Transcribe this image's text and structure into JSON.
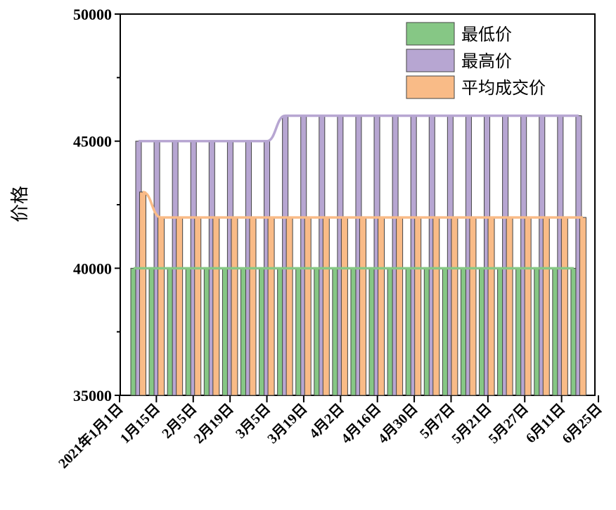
{
  "chart_data": {
    "type": "bar",
    "title": "",
    "xlabel": "",
    "ylabel": "价格",
    "ylim": [
      35000,
      50000
    ],
    "yticks": [
      35000,
      40000,
      45000,
      50000
    ],
    "x_tick_labels": [
      "2021年1月1日",
      "1月15日",
      "2月5日",
      "2月19日",
      "3月5日",
      "3月19日",
      "4月2日",
      "4月16日",
      "4月30日",
      "5月7日",
      "5月21日",
      "5月27日",
      "6月11日",
      "6月25日"
    ],
    "legend_position": "top-right",
    "grid": false,
    "series": [
      {
        "name": "最低价",
        "color": "#86c785",
        "values": [
          40000,
          40000,
          40000,
          40000,
          40000,
          40000,
          40000,
          40000,
          40000,
          40000,
          40000,
          40000,
          40000,
          40000,
          40000,
          40000,
          40000,
          40000,
          40000,
          40000,
          40000,
          40000,
          40000,
          40000,
          40000
        ]
      },
      {
        "name": "最高价",
        "color": "#b7a6d2",
        "values": [
          45000,
          45000,
          45000,
          45000,
          45000,
          45000,
          45000,
          45000,
          46000,
          46000,
          46000,
          46000,
          46000,
          46000,
          46000,
          46000,
          46000,
          46000,
          46000,
          46000,
          46000,
          46000,
          46000,
          46000,
          46000
        ]
      },
      {
        "name": "平均成交价",
        "color": "#f9bb87",
        "values": [
          43000,
          42000,
          42000,
          42000,
          42000,
          42000,
          42000,
          42000,
          42000,
          42000,
          42000,
          42000,
          42000,
          42000,
          42000,
          42000,
          42000,
          42000,
          42000,
          42000,
          42000,
          42000,
          42000,
          42000,
          42000
        ]
      }
    ]
  }
}
